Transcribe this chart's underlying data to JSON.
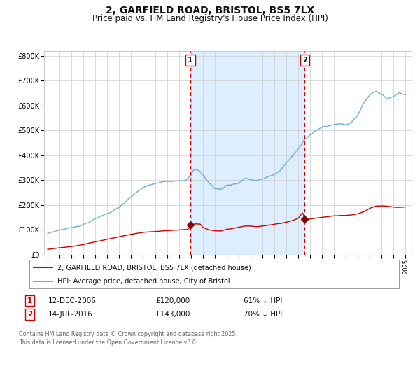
{
  "title": "2, GARFIELD ROAD, BRISTOL, BS5 7LX",
  "subtitle": "Price paid vs. HM Land Registry's House Price Index (HPI)",
  "title_fontsize": 10,
  "subtitle_fontsize": 8.5,
  "background_color": "#ffffff",
  "plot_bg_color": "#ffffff",
  "grid_color": "#cccccc",
  "hpi_line_color": "#6aaed6",
  "price_line_color": "#cc0000",
  "marker_color": "#880000",
  "shade_color": "#ddeeff",
  "dashed_line_color": "#cc0000",
  "annotation1_date": 2006.95,
  "annotation2_date": 2016.54,
  "annotation1_price": 120000,
  "annotation2_price": 143000,
  "legend_label1": "2, GARFIELD ROAD, BRISTOL, BS5 7LX (detached house)",
  "legend_label2": "HPI: Average price, detached house, City of Bristol",
  "event1_label": "1",
  "event2_label": "2",
  "event1_text": "12-DEC-2006",
  "event1_amount": "£120,000",
  "event1_pct": "61% ↓ HPI",
  "event2_text": "14-JUL-2016",
  "event2_amount": "£143,000",
  "event2_pct": "70% ↓ HPI",
  "footer": "Contains HM Land Registry data © Crown copyright and database right 2025.\nThis data is licensed under the Open Government Licence v3.0.",
  "ylim": [
    0,
    820000
  ],
  "xlim_start": 1994.7,
  "xlim_end": 2025.5,
  "yticks": [
    0,
    100000,
    200000,
    300000,
    400000,
    500000,
    600000,
    700000,
    800000
  ],
  "ytick_labels": [
    "£0",
    "£100K",
    "£200K",
    "£300K",
    "£400K",
    "£500K",
    "£600K",
    "£700K",
    "£800K"
  ]
}
